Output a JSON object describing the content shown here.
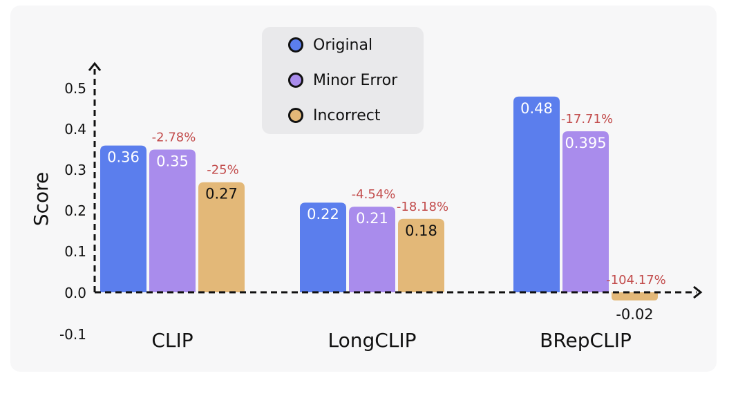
{
  "chart_data": {
    "type": "bar",
    "ylabel": "Score",
    "xlabel": "",
    "ylim": [
      -0.1,
      0.5
    ],
    "yticks": [
      "0.5",
      "0.4",
      "0.3",
      "0.2",
      "0.1",
      "0.0",
      "-0.1"
    ],
    "categories": [
      "CLIP",
      "LongCLIP",
      "BRepCLIP"
    ],
    "series": [
      {
        "name": "Original",
        "color": "#5b7eed",
        "values": [
          0.36,
          0.22,
          0.48
        ],
        "value_labels": [
          "0.36",
          "0.22",
          "0.48"
        ],
        "change_labels": [
          "",
          "",
          ""
        ]
      },
      {
        "name": "Minor Error",
        "color": "#a98cec",
        "values": [
          0.35,
          0.21,
          0.395
        ],
        "value_labels": [
          "0.35",
          "0.21",
          "0.395"
        ],
        "change_labels": [
          "-2.78%",
          "-4.54%",
          "-17.71%"
        ]
      },
      {
        "name": "Incorrect",
        "color": "#e3b878",
        "values": [
          0.27,
          0.18,
          -0.02
        ],
        "value_labels": [
          "0.27",
          "0.18",
          "-0.02"
        ],
        "change_labels": [
          "-25%",
          "-18.18%",
          "-104.17%"
        ]
      }
    ],
    "legend_position": "top-center",
    "change_label_color": "#c24b4b",
    "grid": false
  }
}
